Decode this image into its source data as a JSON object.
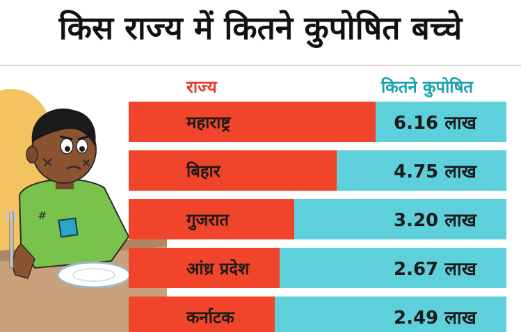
{
  "page": {
    "title": "किस राज्य में कितने कुपोषित बच्चे",
    "header_state": "राज्य",
    "header_value": "कितने कुपोषित"
  },
  "colors": {
    "red_bar": "#f0452b",
    "teal_bar": "#5ed0dc",
    "header_red": "#e23a26",
    "header_teal": "#18a2ad"
  },
  "chart_data": {
    "type": "bar",
    "orientation": "horizontal",
    "categories": [
      "महाराष्ट्र",
      "बिहार",
      "गुजरात",
      "आंध्र प्रदेश",
      "कर्नाटक"
    ],
    "values": [
      6.16,
      4.75,
      3.2,
      2.67,
      2.49
    ],
    "unit": "लाख",
    "data_labels": [
      "6.16 लाख",
      "4.75 लाख",
      "3.20 लाख",
      "2.67 लाख",
      "2.49 लाख"
    ]
  }
}
